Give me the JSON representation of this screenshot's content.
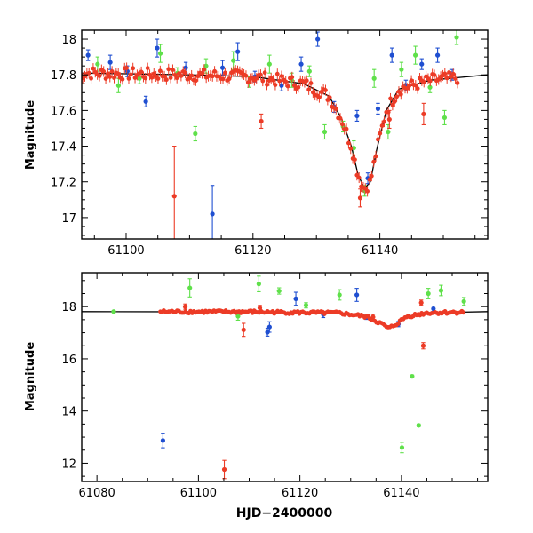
{
  "colors": {
    "blue": "#1f4fd1",
    "green": "#5fe04a",
    "red": "#ec3b26",
    "model": "#000000"
  },
  "chart_data": [
    {
      "type": "scatter",
      "panel": "top",
      "ylabel": "Magnitude",
      "xlabel": "",
      "xlim": [
        61093,
        61157
      ],
      "ylim": [
        18.05,
        16.88
      ],
      "y_inverted": true,
      "x_ticks": [
        61100,
        61120,
        61140
      ],
      "y_ticks": [
        17,
        17.2,
        17.4,
        17.6,
        17.8,
        18
      ],
      "x_tick_labels": [
        "61100",
        "61120",
        "61140"
      ],
      "y_tick_labels": [
        "17",
        "17.2",
        "17.4",
        "17.6",
        "17.8",
        "18"
      ],
      "model_curve": {
        "name": "model",
        "x": [
          61093,
          61110,
          61120,
          61128,
          61132,
          61134,
          61135.5,
          61136.5,
          61137.5,
          61138.5,
          61139.5,
          61141,
          61143,
          61148,
          61157
        ],
        "y": [
          17.81,
          17.8,
          17.79,
          17.75,
          17.68,
          17.55,
          17.4,
          17.25,
          17.16,
          17.2,
          17.38,
          17.6,
          17.72,
          17.77,
          17.8
        ]
      },
      "series": [
        {
          "name": "blue",
          "color": "blue",
          "x": [
            61094,
            61097.5,
            61100.2,
            61103.1,
            61104.9,
            61109.4,
            61113.6,
            61115.2,
            61117.6,
            61120.3,
            61124.5,
            61127.6,
            61130.2,
            61132.8,
            61136.4,
            61138.1,
            61139.7,
            61141.9,
            61144.1,
            61146.6,
            61149.1,
            61151.4
          ],
          "y": [
            17.91,
            17.87,
            17.82,
            17.65,
            17.95,
            17.84,
            17.02,
            17.84,
            17.93,
            17.79,
            17.74,
            17.86,
            18.0,
            17.62,
            17.57,
            17.22,
            17.61,
            17.91,
            17.74,
            17.86,
            17.91,
            17.8
          ],
          "err": [
            0.03,
            0.04,
            0.03,
            0.03,
            0.05,
            0.03,
            0.16,
            0.04,
            0.05,
            0.03,
            0.03,
            0.04,
            0.04,
            0.03,
            0.03,
            0.03,
            0.03,
            0.04,
            0.03,
            0.03,
            0.04,
            0.03
          ]
        },
        {
          "name": "green",
          "color": "green",
          "x": [
            61095.5,
            61098.8,
            61102.1,
            61105.4,
            61108.1,
            61110.9,
            61112.6,
            61116.9,
            61119.4,
            61122.6,
            61126.1,
            61128.9,
            61131.3,
            61134.2,
            61135.9,
            61137.6,
            61139.1,
            61141.3,
            61143.4,
            61145.6,
            61147.9,
            61150.2,
            61152.1
          ],
          "y": [
            17.86,
            17.74,
            17.78,
            17.92,
            17.81,
            17.47,
            17.85,
            17.88,
            17.76,
            17.86,
            17.77,
            17.82,
            17.48,
            17.51,
            17.39,
            17.15,
            17.78,
            17.48,
            17.83,
            17.91,
            17.73,
            17.56,
            18.01
          ],
          "err": [
            0.04,
            0.04,
            0.03,
            0.05,
            0.03,
            0.04,
            0.04,
            0.05,
            0.03,
            0.05,
            0.04,
            0.03,
            0.04,
            0.03,
            0.04,
            0.03,
            0.05,
            0.04,
            0.04,
            0.05,
            0.03,
            0.04,
            0.04
          ]
        },
        {
          "name": "red",
          "color": "red",
          "x": [
            61107.6,
            61121.3,
            61136.9,
            61141.5,
            61146.9
          ],
          "y": [
            17.12,
            17.54,
            17.11,
            17.55,
            17.58
          ],
          "err": [
            0.28,
            0.04,
            0.05,
            0.05,
            0.06
          ]
        }
      ]
    },
    {
      "type": "scatter",
      "panel": "bottom",
      "ylabel": "Magnitude",
      "xlabel": "HJD−2400000",
      "xlim": [
        61077,
        61157
      ],
      "ylim": [
        19.3,
        11.3
      ],
      "y_inverted": true,
      "x_ticks": [
        61080,
        61100,
        61120,
        61140
      ],
      "y_ticks": [
        12,
        14,
        16,
        18
      ],
      "x_tick_labels": [
        "61080",
        "61100",
        "61120",
        "61140"
      ],
      "y_tick_labels": [
        "12",
        "14",
        "16",
        "18"
      ],
      "model_curve": {
        "name": "model",
        "x": [
          61077,
          61110,
          61128,
          61133,
          61136,
          61137.5,
          61139,
          61141,
          61145,
          61157
        ],
        "y": [
          17.81,
          17.8,
          17.75,
          17.62,
          17.35,
          17.16,
          17.33,
          17.62,
          17.76,
          17.81
        ]
      },
      "series": [
        {
          "name": "blue",
          "color": "blue",
          "x": [
            61093,
            61114,
            61113.6,
            61119.2,
            61124.6,
            61131.2,
            61133.1,
            61139.4,
            61146.3
          ],
          "y": [
            12.87,
            17.22,
            17.02,
            18.3,
            17.7,
            18.45,
            17.61,
            17.33,
            17.92
          ],
          "err": [
            0.28,
            0.2,
            0.15,
            0.25,
            0.12,
            0.25,
            0.1,
            0.1,
            0.1
          ]
        },
        {
          "name": "green",
          "color": "green",
          "x": [
            61083.3,
            61098.3,
            61107.8,
            61111.9,
            61115.9,
            61121.2,
            61127.8,
            61140.1,
            61142.1,
            61143.4,
            61145.3,
            61147.8,
            61152.3
          ],
          "y": [
            17.81,
            18.72,
            17.63,
            18.87,
            18.6,
            18.05,
            18.45,
            12.6,
            15.33,
            13.45,
            18.5,
            18.62,
            18.2
          ],
          "err": [
            0.04,
            0.35,
            0.15,
            0.3,
            0.12,
            0.1,
            0.2,
            0.2,
            0.05,
            0.05,
            0.2,
            0.2,
            0.15
          ]
        },
        {
          "name": "red",
          "color": "red",
          "x": [
            61105.1,
            61108.9,
            61144.3,
            61097.4,
            61112.1,
            61134.4,
            61143.9
          ],
          "y": [
            11.76,
            17.11,
            16.5,
            18.0,
            17.95,
            17.6,
            18.15
          ],
          "err": [
            0.35,
            0.25,
            0.12,
            0.1,
            0.1,
            0.1,
            0.1
          ]
        }
      ]
    }
  ]
}
